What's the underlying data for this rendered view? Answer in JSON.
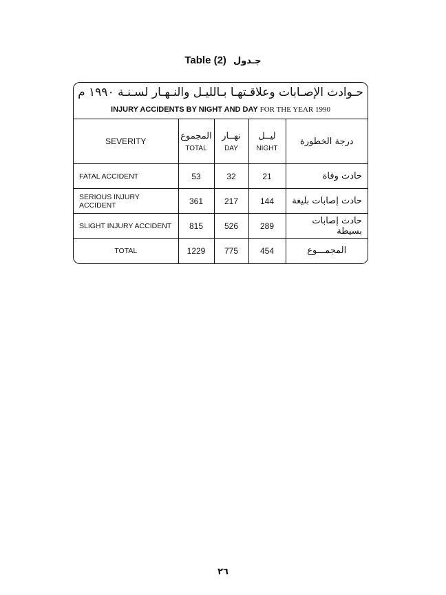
{
  "caption": {
    "en": "Table (2)",
    "ar": "جـدول"
  },
  "title": {
    "ar": "حـوادث الإصـابات وعلاقـتهـا بـالليـل والنـهـار لسـنـة ١٩٩٠ م",
    "en_bold": "INJURY ACCIDENTS BY NIGHT AND DAY",
    "en_serif": "FOR THE YEAR 1990"
  },
  "headers": {
    "severity": "SEVERITY",
    "total_ar": "المجموع",
    "total": "TOTAL",
    "day_ar": "نهــار",
    "day": "DAY",
    "night_ar": "ليــل",
    "night": "NIGHT",
    "severity_ar": "درجة الخطورة"
  },
  "rows": [
    {
      "en": "FATAL ACCIDENT",
      "total": "53",
      "day": "32",
      "night": "21",
      "ar": "حادث وفاة"
    },
    {
      "en": "SERIOUS INJURY ACCIDENT",
      "total": "361",
      "day": "217",
      "night": "144",
      "ar": "حادث إصابات بليغة"
    },
    {
      "en": "SLIGHT INJURY ACCIDENT",
      "total": "815",
      "day": "526",
      "night": "289",
      "ar": "حادث إصابات بسيطة"
    },
    {
      "en": "TOTAL",
      "total": "1229",
      "day": "775",
      "night": "454",
      "ar": "المجمـــوع"
    }
  ],
  "page_number": "٢٦"
}
